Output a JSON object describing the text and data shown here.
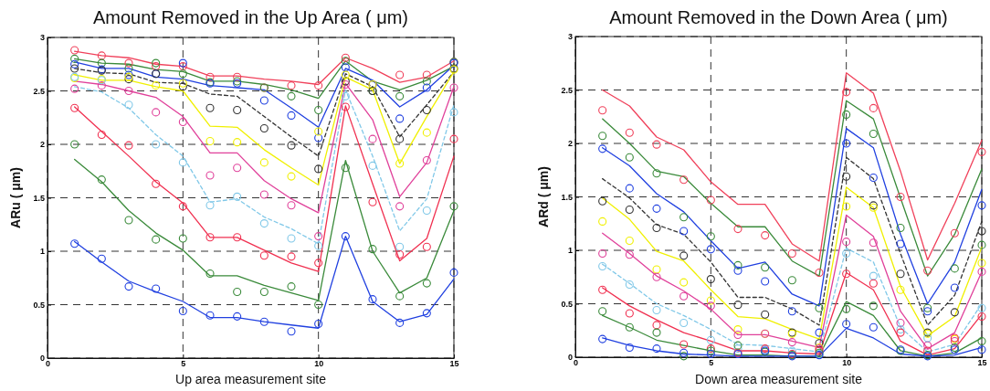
{
  "chart_data": [
    {
      "type": "line",
      "title": "Amount Removed in the Up Area ( μm)",
      "xlabel": "Up area measurement site",
      "ylabel": "ARu ( μm)",
      "x": [
        1,
        2,
        3,
        4,
        5,
        6,
        7,
        8,
        9,
        10,
        11,
        12,
        13,
        14,
        15
      ],
      "xlim": [
        0,
        15
      ],
      "xticks": [
        0,
        5,
        10,
        15
      ],
      "ylim": [
        0,
        3
      ],
      "yticks": [
        0,
        0.5,
        1,
        1.5,
        2,
        2.5,
        3
      ],
      "grid": true,
      "series": [
        {
          "type": "line",
          "color": "#f0405a",
          "values": [
            2.87,
            2.83,
            2.81,
            2.75,
            2.73,
            2.64,
            2.64,
            2.61,
            2.59,
            2.56,
            2.81,
            2.71,
            2.58,
            2.63,
            2.78
          ]
        },
        {
          "type": "line",
          "color": "#3a8a3a",
          "values": [
            2.8,
            2.76,
            2.75,
            2.7,
            2.68,
            2.59,
            2.59,
            2.56,
            2.51,
            2.43,
            2.78,
            2.59,
            2.51,
            2.6,
            2.73
          ]
        },
        {
          "type": "line",
          "color": "#2040e0",
          "values": [
            2.77,
            2.71,
            2.71,
            2.63,
            2.61,
            2.55,
            2.53,
            2.51,
            2.34,
            2.16,
            2.71,
            2.6,
            2.35,
            2.51,
            2.74
          ]
        },
        {
          "type": "line",
          "color": "#333333",
          "line_style": "dashed",
          "values": [
            2.71,
            2.67,
            2.66,
            2.58,
            2.57,
            2.47,
            2.45,
            2.26,
            2.07,
            1.89,
            2.66,
            2.54,
            2.07,
            2.37,
            2.68
          ]
        },
        {
          "type": "line",
          "color": "#f0f000",
          "values": [
            2.65,
            2.6,
            2.6,
            2.54,
            2.5,
            2.17,
            2.16,
            1.95,
            1.78,
            1.62,
            2.63,
            2.51,
            1.82,
            2.26,
            2.68
          ]
        },
        {
          "type": "line",
          "color": "#e0409a",
          "values": [
            2.59,
            2.56,
            2.5,
            2.44,
            2.26,
            1.92,
            1.92,
            1.66,
            1.49,
            1.36,
            2.57,
            2.23,
            1.51,
            1.83,
            2.54
          ]
        },
        {
          "type": "line",
          "color": "#80c8e8",
          "line_style": "dashed",
          "values": [
            2.54,
            2.49,
            2.34,
            2.09,
            1.89,
            1.46,
            1.49,
            1.32,
            1.21,
            1.07,
            2.51,
            1.89,
            1.19,
            1.49,
            2.37
          ]
        },
        {
          "type": "line",
          "color": "#f03050",
          "values": [
            2.35,
            2.12,
            1.89,
            1.65,
            1.45,
            1.13,
            1.13,
            1.01,
            0.89,
            0.81,
            2.36,
            1.63,
            0.91,
            1.12,
            1.89
          ]
        },
        {
          "type": "line",
          "color": "#3a8a3a",
          "values": [
            1.86,
            1.65,
            1.38,
            1.17,
            1.01,
            0.77,
            0.77,
            0.68,
            0.61,
            0.54,
            1.85,
            1.0,
            0.61,
            0.75,
            1.38
          ]
        },
        {
          "type": "line",
          "color": "#2040e0",
          "values": [
            1.09,
            0.9,
            0.72,
            0.62,
            0.53,
            0.38,
            0.38,
            0.34,
            0.31,
            0.28,
            1.14,
            0.53,
            0.34,
            0.41,
            0.74
          ]
        },
        {
          "type": "scatter",
          "marker": "circle",
          "color": "#f0405a",
          "values": [
            2.88,
            2.83,
            2.76,
            2.73,
            2.73,
            2.63,
            2.63,
            2.53,
            2.55,
            2.55,
            2.81,
            2.56,
            2.65,
            2.65,
            2.77
          ]
        },
        {
          "type": "scatter",
          "marker": "circle",
          "color": "#3a8a3a",
          "values": [
            2.8,
            2.76,
            2.71,
            2.76,
            2.66,
            2.58,
            2.59,
            2.53,
            2.45,
            2.32,
            2.78,
            2.5,
            2.45,
            2.59,
            2.77
          ]
        },
        {
          "type": "scatter",
          "marker": "circle",
          "color": "#2040e0",
          "values": [
            2.75,
            2.7,
            2.65,
            2.66,
            2.76,
            2.57,
            2.57,
            2.41,
            2.27,
            2.06,
            2.72,
            2.56,
            2.24,
            2.53,
            2.76
          ]
        },
        {
          "type": "scatter",
          "marker": "circle",
          "color": "#333333",
          "values": [
            2.71,
            2.69,
            2.61,
            2.66,
            2.54,
            2.34,
            2.32,
            2.15,
            1.99,
            1.77,
            2.59,
            2.5,
            2.05,
            2.32,
            2.71
          ]
        },
        {
          "type": "scatter",
          "marker": "circle",
          "color": "#f0f000",
          "values": [
            2.62,
            2.61,
            2.63,
            2.55,
            2.57,
            2.03,
            2.02,
            1.83,
            1.7,
            2.12,
            2.65,
            2.56,
            1.82,
            2.11,
            2.7
          ]
        },
        {
          "type": "scatter",
          "marker": "circle",
          "color": "#e0409a",
          "values": [
            2.52,
            2.55,
            2.5,
            2.3,
            2.21,
            1.71,
            1.78,
            1.53,
            1.43,
            1.14,
            2.56,
            2.05,
            1.42,
            1.85,
            2.53
          ]
        },
        {
          "type": "scatter",
          "marker": "circle",
          "color": "#80c8e8",
          "values": [
            2.63,
            2.6,
            2.37,
            2.0,
            1.83,
            1.43,
            1.51,
            1.26,
            1.12,
            1.05,
            2.45,
            1.8,
            1.04,
            1.38,
            2.3
          ]
        },
        {
          "type": "scatter",
          "marker": "circle",
          "color": "#f03050",
          "values": [
            2.34,
            2.09,
            1.99,
            1.63,
            1.42,
            1.13,
            1.13,
            0.96,
            0.95,
            0.89,
            2.35,
            1.46,
            0.97,
            1.04,
            2.05
          ]
        },
        {
          "type": "scatter",
          "marker": "circle",
          "color": "#3a8a3a",
          "values": [
            2.0,
            1.67,
            1.29,
            1.11,
            1.12,
            0.79,
            0.62,
            0.62,
            0.67,
            0.5,
            1.78,
            1.02,
            0.58,
            0.7,
            1.42
          ]
        },
        {
          "type": "scatter",
          "marker": "circle",
          "color": "#2040e0",
          "values": [
            1.07,
            0.93,
            0.67,
            0.65,
            0.44,
            0.4,
            0.39,
            0.34,
            0.25,
            0.32,
            1.14,
            0.55,
            0.33,
            0.42,
            0.8
          ]
        }
      ]
    },
    {
      "type": "line",
      "title": "Amount Removed in the Down Area ( μm)",
      "xlabel": "Down area measurement site",
      "ylabel": "ARd ( μm)",
      "x": [
        1,
        2,
        3,
        4,
        5,
        6,
        7,
        8,
        9,
        10,
        11,
        12,
        13,
        14,
        15
      ],
      "xlim": [
        0,
        15
      ],
      "xticks": [
        0,
        5,
        10,
        15
      ],
      "ylim": [
        0,
        3
      ],
      "yticks": [
        0,
        0.5,
        1,
        1.5,
        2,
        2.5,
        3
      ],
      "grid": true,
      "series": [
        {
          "type": "line",
          "color": "#f0405a",
          "values": [
            2.5,
            2.35,
            2.06,
            1.94,
            1.64,
            1.43,
            1.43,
            1.06,
            0.9,
            2.66,
            2.47,
            1.74,
            0.91,
            1.44,
            2.03
          ]
        },
        {
          "type": "line",
          "color": "#3a8a3a",
          "values": [
            2.23,
            2.0,
            1.74,
            1.69,
            1.44,
            1.22,
            1.22,
            0.9,
            0.76,
            2.4,
            2.23,
            1.49,
            0.76,
            1.15,
            1.76
          ]
        },
        {
          "type": "line",
          "color": "#2040e0",
          "values": [
            1.96,
            1.79,
            1.53,
            1.36,
            1.09,
            0.83,
            0.89,
            0.59,
            0.48,
            2.14,
            1.96,
            1.15,
            0.5,
            0.89,
            1.57
          ]
        },
        {
          "type": "line",
          "color": "#333333",
          "line_style": "dashed",
          "values": [
            1.67,
            1.49,
            1.24,
            1.15,
            0.89,
            0.56,
            0.56,
            0.45,
            0.3,
            1.87,
            1.67,
            0.97,
            0.3,
            0.58,
            1.27
          ]
        },
        {
          "type": "line",
          "color": "#f0f000",
          "values": [
            1.49,
            1.29,
            0.99,
            0.9,
            0.63,
            0.38,
            0.36,
            0.26,
            0.17,
            1.59,
            1.4,
            0.66,
            0.2,
            0.38,
            1.03
          ]
        },
        {
          "type": "line",
          "color": "#e0409a",
          "values": [
            1.16,
            0.97,
            0.76,
            0.62,
            0.45,
            0.21,
            0.21,
            0.15,
            0.09,
            1.33,
            1.13,
            0.43,
            0.08,
            0.23,
            0.8
          ]
        },
        {
          "type": "line",
          "color": "#80c8e8",
          "line_style": "dashed",
          "values": [
            0.87,
            0.69,
            0.5,
            0.39,
            0.26,
            0.12,
            0.11,
            0.08,
            0.05,
            1.02,
            0.89,
            0.28,
            0.05,
            0.12,
            0.5
          ]
        },
        {
          "type": "line",
          "color": "#f03050",
          "values": [
            0.65,
            0.48,
            0.35,
            0.23,
            0.15,
            0.06,
            0.06,
            0.04,
            0.03,
            0.79,
            0.63,
            0.15,
            0.02,
            0.08,
            0.4
          ]
        },
        {
          "type": "line",
          "color": "#3a8a3a",
          "values": [
            0.39,
            0.28,
            0.16,
            0.11,
            0.06,
            0.02,
            0.02,
            0.01,
            0.01,
            0.52,
            0.39,
            0.06,
            0.01,
            0.04,
            0.18
          ]
        },
        {
          "type": "line",
          "color": "#2040e0",
          "values": [
            0.18,
            0.11,
            0.06,
            0.03,
            0.02,
            0.01,
            0.01,
            0.01,
            0.01,
            0.27,
            0.18,
            0.03,
            0.01,
            0.02,
            0.09
          ]
        },
        {
          "type": "scatter",
          "marker": "circle",
          "color": "#f0405a",
          "values": [
            2.31,
            2.1,
            1.99,
            1.66,
            1.47,
            1.2,
            1.14,
            0.97,
            0.79,
            2.48,
            2.33,
            1.5,
            0.81,
            1.16,
            1.92
          ]
        },
        {
          "type": "scatter",
          "marker": "circle",
          "color": "#3a8a3a",
          "values": [
            2.07,
            1.87,
            1.72,
            1.31,
            1.13,
            0.86,
            0.84,
            0.72,
            0.46,
            2.27,
            2.09,
            1.21,
            0.46,
            0.83,
            1.05
          ]
        },
        {
          "type": "scatter",
          "marker": "circle",
          "color": "#2040e0",
          "values": [
            1.95,
            1.58,
            1.39,
            1.18,
            1.01,
            0.81,
            0.71,
            0.43,
            0.23,
            2.0,
            1.68,
            1.06,
            0.43,
            0.65,
            1.42
          ]
        },
        {
          "type": "scatter",
          "marker": "circle",
          "color": "#333333",
          "values": [
            1.46,
            1.38,
            1.21,
            0.95,
            0.73,
            0.49,
            0.4,
            0.23,
            0.13,
            1.69,
            1.42,
            0.78,
            0.23,
            0.42,
            1.18
          ]
        },
        {
          "type": "scatter",
          "marker": "circle",
          "color": "#f0f000",
          "values": [
            1.27,
            1.09,
            0.82,
            0.7,
            0.53,
            0.26,
            0.22,
            0.22,
            0.09,
            1.41,
            1.4,
            0.63,
            0.22,
            0.17,
            0.88
          ]
        },
        {
          "type": "scatter",
          "marker": "circle",
          "color": "#e0409a",
          "values": [
            0.97,
            0.96,
            0.75,
            0.57,
            0.48,
            0.21,
            0.22,
            0.14,
            0.08,
            1.08,
            1.07,
            0.32,
            0.11,
            0.15,
            0.8
          ]
        },
        {
          "type": "scatter",
          "marker": "circle",
          "color": "#80c8e8",
          "values": [
            0.85,
            0.68,
            0.44,
            0.32,
            0.16,
            0.08,
            0.07,
            0.06,
            0.03,
            0.97,
            0.76,
            0.26,
            0.18,
            0.09,
            0.46
          ]
        },
        {
          "type": "scatter",
          "marker": "circle",
          "color": "#f03050",
          "values": [
            0.63,
            0.41,
            0.3,
            0.12,
            0.08,
            0.04,
            0.08,
            0.03,
            0.06,
            0.78,
            0.69,
            0.23,
            0.06,
            0.18,
            0.38
          ]
        },
        {
          "type": "scatter",
          "marker": "circle",
          "color": "#3a8a3a",
          "values": [
            0.43,
            0.28,
            0.23,
            0.01,
            0.06,
            0.11,
            0.05,
            0.02,
            0.04,
            0.45,
            0.48,
            0.06,
            0.02,
            0.09,
            0.15
          ]
        },
        {
          "type": "scatter",
          "marker": "circle",
          "color": "#2040e0",
          "values": [
            0.17,
            0.09,
            0.08,
            0.04,
            0.03,
            0.03,
            0.06,
            0.01,
            0.02,
            0.31,
            0.28,
            0.07,
            0.01,
            0.07,
            0.07
          ]
        }
      ]
    }
  ]
}
